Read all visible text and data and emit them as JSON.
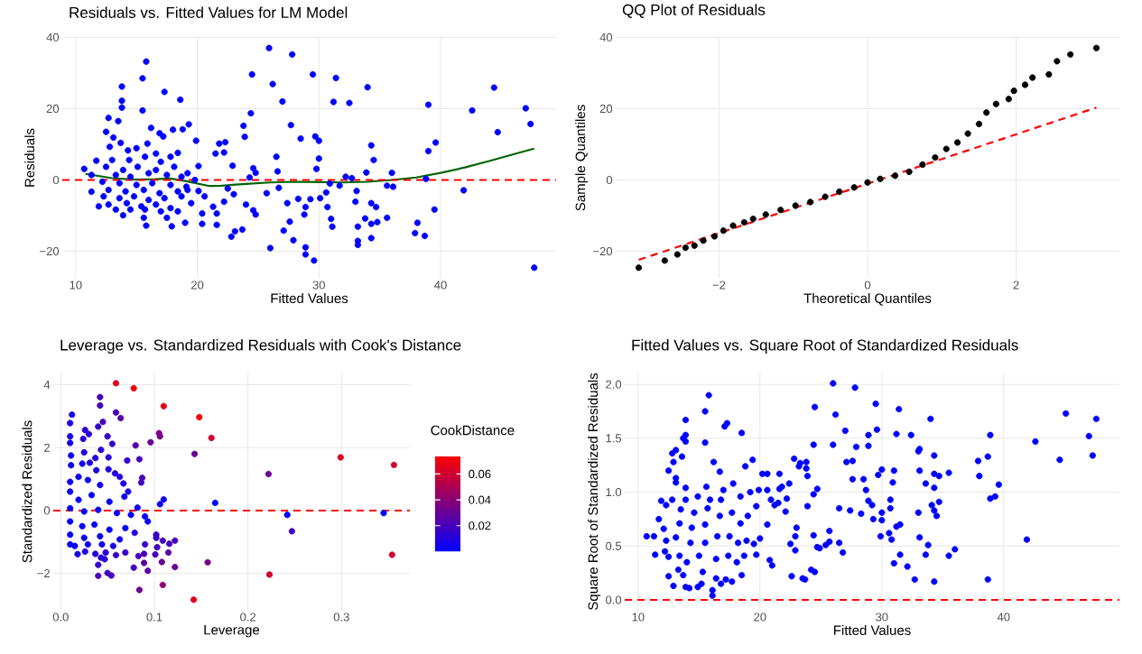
{
  "chart_data": [
    {
      "type": "scatter",
      "title": "Residuals vs. Fitted Values for LM Model",
      "xlabel": "Fitted Values",
      "ylabel": "Residuals",
      "xlim": [
        8.9,
        49.5
      ],
      "ylim": [
        -27.7,
        40.1
      ],
      "xticks": [
        10,
        20,
        30,
        40
      ],
      "yticks": [
        {
          "value": -20,
          "label": "−20"
        },
        0,
        20,
        40
      ],
      "grid": true,
      "marker": "circle",
      "series": [
        {
          "color": "#0000ff",
          "x": [
            25.9,
            27.8,
            15.8,
            24.5,
            29.5,
            31.4,
            15.5,
            26.2,
            34.0,
            44.4,
            13.8,
            17.3,
            27.0,
            31.2,
            32.5,
            39.0,
            42.6,
            47.0,
            15.5,
            18.6,
            13.8,
            24.4,
            13.8,
            12.7,
            13.5,
            47.4,
            27.7,
            23.8,
            19.3,
            44.7,
            12.5,
            29.7,
            23.9,
            28.5,
            30.0,
            19.9,
            39.6,
            34.3,
            21.8,
            22.3,
            39.0,
            21.5,
            22.2,
            26.5,
            30.0,
            34.5,
            22.9,
            20.1,
            24.6,
            29.8,
            26.6,
            33.9,
            36.0,
            24.8,
            32.2,
            32.7,
            38.8,
            24.3,
            10.7,
            11.7,
            11.3,
            11.3,
            11.9,
            41.9,
            33.1,
            25.7,
            35.6,
            36.1,
            31.7,
            30.9,
            30.6,
            26.7,
            23.0,
            22.5,
            20.6,
            20.1,
            27.4,
            28.3,
            29.3,
            30.1,
            33.0,
            34.3,
            39.5,
            34.7,
            30.7,
            28.9,
            24.6,
            24.8,
            24.0,
            22.2,
            21.3,
            20.4,
            21.6,
            28.8,
            33.8,
            35.6,
            34.8,
            31.0,
            27.6,
            38.1,
            34.3,
            31.1,
            33.2,
            20.4,
            21.6,
            19.0,
            23.1,
            23.7,
            22.8,
            27.1,
            37.9,
            38.7,
            34.3,
            33.2,
            33.2,
            27.9,
            26.0,
            28.9,
            28.9,
            29.6,
            47.7,
            17.9,
            15.8,
            13.9,
            15.6,
            17.5,
            12.8,
            13.1,
            16.9,
            18.0,
            18.8,
            16.2,
            17.2,
            13.7,
            15.9,
            18.4,
            15.0,
            14.3,
            16.6,
            17.8,
            13.0,
            14.4,
            15.7,
            17.0,
            12.5,
            13.9,
            15.1,
            16.6,
            18.1,
            13.3,
            14.5,
            16.0,
            17.5,
            18.7,
            12.2,
            13.6,
            15.0,
            16.3,
            17.8,
            19.1,
            12.7,
            14.1,
            15.6,
            16.9,
            18.4,
            12.3,
            13.6,
            14.8,
            16.0,
            17.3,
            18.7,
            12.7,
            14.2,
            15.4,
            16.6,
            17.8,
            13.3,
            14.5,
            15.7,
            17.0,
            18.4,
            19.5,
            19.2,
            19.8,
            19.2
          ],
          "values": [
            37.0,
            35.2,
            33.2,
            29.6,
            29.6,
            28.6,
            28.5,
            26.9,
            26.0,
            25.9,
            26.2,
            24.7,
            22.0,
            21.9,
            21.6,
            21.1,
            19.5,
            20.1,
            19.5,
            22.5,
            22.2,
            18.7,
            20.3,
            17.4,
            16.5,
            15.7,
            15.4,
            15.2,
            15.6,
            13.4,
            13.5,
            12.2,
            12.1,
            11.6,
            11.0,
            11.0,
            10.5,
            9.7,
            10.2,
            10.6,
            8.1,
            7.4,
            7.7,
            6.5,
            6.0,
            5.6,
            4.0,
            3.9,
            3.3,
            3.1,
            2.4,
            2.1,
            2.0,
            2.0,
            0.9,
            0.5,
            0.3,
            0.7,
            3.1,
            5.4,
            1.4,
            -3.3,
            -7.4,
            -2.9,
            -3.1,
            -3.7,
            -1.6,
            -1.9,
            -1.6,
            -1.0,
            -3.5,
            -2.2,
            -4.0,
            -2.4,
            -4.6,
            -3.1,
            -6.5,
            -5.3,
            -5.4,
            -5.1,
            -6.1,
            -6.5,
            -8.3,
            -7.6,
            -7.6,
            -7.6,
            -8.5,
            -9.7,
            -6.9,
            -6.1,
            -7.5,
            -9.4,
            -9.4,
            -9.7,
            -10.8,
            -10.6,
            -11.8,
            -10.9,
            -11.7,
            -12.0,
            -12.3,
            -13.1,
            -13.1,
            -12.3,
            -12.6,
            -12.0,
            -14.4,
            -13.9,
            -15.9,
            -14.2,
            -14.9,
            -15.7,
            -16.3,
            -17.1,
            -18.2,
            -16.9,
            -19.1,
            -18.9,
            -20.9,
            -22.6,
            -24.6,
            -13.0,
            -12.8,
            -9.9,
            -10.6,
            -10.6,
            9.3,
            11.9,
            13.1,
            14.1,
            14.2,
            14.6,
            12.2,
            10.4,
            10.2,
            7.6,
            8.9,
            8.3,
            7.4,
            6.5,
            5.6,
            5.6,
            6.5,
            5.1,
            3.7,
            2.8,
            3.7,
            2.8,
            3.7,
            1.4,
            0.9,
            1.9,
            1.4,
            0.9,
            -0.5,
            -0.9,
            -1.4,
            -0.9,
            -1.4,
            -1.9,
            -2.8,
            -3.2,
            -2.8,
            -3.7,
            -3.2,
            -4.6,
            -5.1,
            -4.6,
            -5.6,
            -5.1,
            -4.6,
            -6.9,
            -6.5,
            -7.4,
            -6.9,
            -7.9,
            -8.3,
            -8.3,
            -8.3,
            -8.8,
            -8.8,
            -6.5,
            -2.8,
            0.0,
            1.9
          ]
        },
        {
          "type": "line",
          "color": "#006400",
          "marker": "none",
          "x": [
            10.8,
            13,
            15,
            16.5,
            17.8,
            19,
            21,
            22,
            24,
            26,
            28,
            30,
            32,
            34,
            36,
            38,
            40,
            42,
            44,
            46,
            47.7
          ],
          "values": [
            1.7,
            0.5,
            0.1,
            0.2,
            0.4,
            -0.3,
            -1.7,
            -1.6,
            -1.1,
            -0.7,
            -0.5,
            -0.6,
            -0.7,
            -0.5,
            0.0,
            0.7,
            2.0,
            3.5,
            5.3,
            7.2,
            8.8
          ]
        }
      ],
      "ref_lines": [
        {
          "axis": "y",
          "value": 0,
          "color": "#ff0000",
          "line_style": "dashed"
        }
      ]
    },
    {
      "type": "scatter",
      "title": "QQ Plot of Residuals",
      "xlabel": "Theoretical Quantiles",
      "ylabel": "Sample Quantiles",
      "xlim": [
        -3.39,
        3.39
      ],
      "ylim": [
        -27.7,
        40.1
      ],
      "xticks": [
        {
          "value": -2,
          "label": "−2"
        },
        0,
        2
      ],
      "yticks": [
        {
          "value": -20,
          "label": "−20"
        },
        0,
        20,
        40
      ],
      "grid": true,
      "marker": "circle",
      "series": [
        {
          "color": "#000000",
          "x": [
            -3.08,
            -2.73,
            -2.56,
            -2.45,
            -2.33,
            -2.21,
            -2.06,
            -1.94,
            -1.81,
            -1.66,
            -1.54,
            -1.37,
            -1.17,
            -0.97,
            -0.77,
            -0.57,
            -0.38,
            -0.18,
            0,
            0.17,
            0.37,
            0.56,
            0.74,
            0.91,
            1.06,
            1.21,
            1.35,
            1.5,
            1.6,
            1.73,
            1.9,
            1.97,
            2.12,
            2.22,
            2.44,
            2.55,
            2.73,
            3.08
          ],
          "values": [
            -24.6,
            -22.6,
            -20.9,
            -19.0,
            -18.4,
            -17.0,
            -15.8,
            -14.2,
            -12.8,
            -11.9,
            -10.9,
            -9.7,
            -8.4,
            -7.2,
            -6.2,
            -4.7,
            -3.3,
            -2.1,
            -0.7,
            0.3,
            1.2,
            2.3,
            4.3,
            6.3,
            8.7,
            10.5,
            13.0,
            15.7,
            18.9,
            21.3,
            22.7,
            25.0,
            26.7,
            28.7,
            29.6,
            33.3,
            35.2,
            37.0
          ]
        },
        {
          "type": "line",
          "color": "#ff0000",
          "marker": "none",
          "line_style": "dashed",
          "x": [
            -3.08,
            3.08
          ],
          "values": [
            -22.4,
            20.3
          ]
        }
      ]
    },
    {
      "type": "scatter",
      "title": "Leverage vs. Standardized Residuals with Cook's Distance",
      "xlabel": "Leverage",
      "ylabel": "Standardized Residuals",
      "clabel": "CookDistance",
      "xlim": [
        -0.008,
        0.373
      ],
      "ylim": [
        -3.19,
        4.39
      ],
      "xticks": [
        {
          "value": 0,
          "label": "0.0"
        },
        {
          "value": 0.1,
          "label": "0.1"
        },
        {
          "value": 0.2,
          "label": "0.2"
        },
        {
          "value": 0.3,
          "label": "0.3"
        }
      ],
      "yticks": [
        {
          "value": -2,
          "label": "−2"
        },
        0,
        2,
        4
      ],
      "clim": [
        0,
        0.074
      ],
      "cticks": [
        0.02,
        0.04,
        0.06
      ],
      "grid": true,
      "marker": "circle",
      "x": [
        0.059,
        0.078,
        0.11,
        0.148,
        0.161,
        0.299,
        0.356,
        0.222,
        0.143,
        0.165,
        0.242,
        0.345,
        0.247,
        0.354,
        0.157,
        0.223,
        0.142,
        0.109,
        0.084,
        0.042,
        0.042,
        0.059,
        0.064,
        0.012,
        0.01,
        0.045,
        0.026,
        0.03,
        0.04,
        0.105,
        0.106,
        0.096,
        0.08,
        0.055,
        0.05,
        0.024,
        0.01,
        0.01,
        0.025,
        0.043,
        0.011,
        0.037,
        0.051,
        0.071,
        0.084,
        0.011,
        0.023,
        0.031,
        0.038,
        0.051,
        0.058,
        0.063,
        0.087,
        0.086,
        0.01,
        0.019,
        0.029,
        0.042,
        0.067,
        0.072,
        0.068,
        0.106,
        0.11,
        0.082,
        0.01,
        0.019,
        0.033,
        0.052,
        0.01,
        0.025,
        0.04,
        0.06,
        0.075,
        0.09,
        0.093,
        0.01,
        0.023,
        0.036,
        0.052,
        0.069,
        0.01,
        0.025,
        0.042,
        0.063,
        0.079,
        0.01,
        0.015,
        0.029,
        0.044,
        0.056,
        0.09,
        0.102,
        0.102,
        0.109,
        0.122,
        0.116,
        0.103,
        0.115,
        0.101,
        0.089,
        0.083,
        0.069,
        0.059,
        0.048,
        0.037,
        0.026,
        0.018,
        0.043,
        0.047,
        0.04,
        0.078,
        0.089,
        0.108,
        0.122,
        0.093,
        0.04,
        0.05,
        0.054
      ],
      "values": [
        4.05,
        3.89,
        3.32,
        2.97,
        2.31,
        1.69,
        1.45,
        1.16,
        1.8,
        0.24,
        -0.14,
        -0.08,
        -0.66,
        -1.41,
        -1.65,
        -2.04,
        -2.84,
        -2.37,
        -2.53,
        3.61,
        3.34,
        3.12,
        2.94,
        3.05,
        2.78,
        2.82,
        2.56,
        2.43,
        2.67,
        2.46,
        2.36,
        2.17,
        2.07,
        2.12,
        2.36,
        2.28,
        2.36,
        2.15,
        1.85,
        1.93,
        1.75,
        1.67,
        1.69,
        1.59,
        1.63,
        1.44,
        1.49,
        1.52,
        1.28,
        1.31,
        1.18,
        1.07,
        1.04,
        0.89,
        0.91,
        1.07,
        0.97,
        0.81,
        0.86,
        0.6,
        0.44,
        0.2,
        0.35,
        0.09,
        0.6,
        0.34,
        0.49,
        0.28,
        0.07,
        -0.03,
        0.02,
        -0.08,
        -0.14,
        -0.19,
        -0.35,
        -0.35,
        -0.5,
        -0.45,
        -0.61,
        -0.56,
        -0.77,
        -0.87,
        -0.82,
        -0.92,
        -0.71,
        -1.08,
        -1.13,
        -1.08,
        -1.08,
        -1.13,
        -1.08,
        -0.77,
        -0.87,
        -0.96,
        -0.96,
        -1.06,
        -1.17,
        -1.34,
        -1.4,
        -1.38,
        -1.45,
        -1.34,
        -1.42,
        -1.34,
        -1.38,
        -1.31,
        -1.39,
        -1.5,
        -1.55,
        -1.73,
        -1.82,
        -1.67,
        -1.64,
        -1.8,
        -1.92,
        -2.08,
        -1.99,
        -2.07
      ],
      "cvalues": [
        0.065,
        0.068,
        0.065,
        0.072,
        0.06,
        0.065,
        0.06,
        0.03,
        0.03,
        0.0,
        0.0,
        0.0,
        0.02,
        0.06,
        0.035,
        0.06,
        0.065,
        0.04,
        0.03,
        0.02,
        0.02,
        0.02,
        0.025,
        0.008,
        0.008,
        0.02,
        0.012,
        0.012,
        0.015,
        0.035,
        0.035,
        0.03,
        0.025,
        0.015,
        0.015,
        0.012,
        0.005,
        0.005,
        0.01,
        0.012,
        0.005,
        0.01,
        0.012,
        0.015,
        0.02,
        0.005,
        0.005,
        0.008,
        0.008,
        0.008,
        0.01,
        0.01,
        0.02,
        0.02,
        0.003,
        0.003,
        0.003,
        0.005,
        0.008,
        0.008,
        0.005,
        0.003,
        0.003,
        0.003,
        0.002,
        0.001,
        0.002,
        0.002,
        0.001,
        0.001,
        0.001,
        0.001,
        0.002,
        0.003,
        0.003,
        0.001,
        0.002,
        0.002,
        0.003,
        0.003,
        0.002,
        0.003,
        0.004,
        0.006,
        0.008,
        0.003,
        0.003,
        0.005,
        0.006,
        0.008,
        0.015,
        0.015,
        0.015,
        0.02,
        0.02,
        0.02,
        0.02,
        0.025,
        0.02,
        0.02,
        0.02,
        0.015,
        0.015,
        0.012,
        0.01,
        0.008,
        0.008,
        0.012,
        0.012,
        0.015,
        0.02,
        0.025,
        0.03,
        0.03,
        0.025,
        0.02,
        0.02,
        0.02
      ],
      "ref_lines": [
        {
          "axis": "y",
          "value": 0,
          "color": "#ff0000",
          "line_style": "dashed"
        }
      ]
    },
    {
      "type": "scatter",
      "title": "Fitted Values vs. Square Root of Standardized Residuals",
      "xlabel": "Fitted Values",
      "ylabel": "Square Root of Standardized Residuals",
      "xlim": [
        8.9,
        49.5
      ],
      "ylim": [
        -0.1,
        2.11
      ],
      "xticks": [
        10,
        20,
        30,
        40
      ],
      "yticks": [
        {
          "value": 0,
          "label": "0.0"
        },
        {
          "value": 0.5,
          "label": "0.5"
        },
        {
          "value": 1,
          "label": "1.0"
        },
        {
          "value": 1.5,
          "label": "1.5"
        },
        {
          "value": 2,
          "label": "2.0"
        }
      ],
      "grid": true,
      "marker": "circle",
      "color": "#0000ff",
      "x": [
        26.0,
        27.8,
        15.8,
        29.5,
        24.5,
        31.4,
        15.5,
        45.1,
        26.2,
        34.0,
        47.6,
        13.9,
        17.3,
        17.1,
        29.6,
        27.0,
        18.5,
        13.9,
        38.9,
        28.9,
        31.2,
        32.4,
        47.0,
        13.7,
        13.9,
        42.6,
        15.5,
        24.4,
        26.0,
        28.9,
        27.9,
        33.1,
        33.0,
        13.1,
        12.8,
        13.6,
        34.3,
        38.7,
        47.3,
        22.8,
        19.4,
        44.6,
        12.9,
        16.2,
        23.8,
        23.3,
        27.1,
        27.6,
        37.9,
        23.2,
        23.8,
        12.5,
        16.7,
        30.0,
        31.0,
        33.1,
        18.8,
        20.2,
        20.6,
        21.6,
        35.5,
        34.3,
        34.7,
        23.9,
        29.7,
        38.0,
        13.1,
        13.1,
        27.6,
        28.5,
        30.9,
        33.6,
        39.6,
        22.4,
        21.8,
        21.6,
        24.7,
        28.7,
        34.3,
        13.9,
        19.9,
        20.6,
        24.4,
        39.3,
        38.9,
        30.7,
        34.7,
        28.9,
        20.9,
        22.2,
        21.5,
        21.2,
        29.2,
        34.1,
        23.9,
        19.7,
        26.5,
        27.4,
        34.3,
        22.1,
        28.3,
        33.0,
        34.5,
        30.7,
        30.0,
        30.0,
        29.3,
        20.6,
        31.5,
        31.2,
        25.7,
        23.0,
        22.9,
        24.4,
        30.6,
        29.9,
        33.1,
        41.9,
        30.8,
        25.7,
        26.5,
        25.4,
        33.8,
        22.5,
        24.7,
        24.9,
        36.0,
        22.9,
        26.8,
        31.5,
        33.6,
        35.5,
        20.8,
        21.0,
        31.0,
        32.1,
        24.2,
        24.5,
        22.6,
        23.5,
        23.7,
        32.7,
        34.3,
        38.7,
        10.7,
        11.3,
        11.4,
        11.7,
        11.9,
        12.3,
        12.8,
        12.1,
        12.3,
        12.2,
        12.5,
        12.5,
        12.9,
        13.3,
        13.1,
        13.4,
        13.5,
        13.9,
        13.4,
        13.7,
        13.9,
        14.2,
        14.0,
        14.3,
        14.4,
        14.6,
        14.9,
        14.9,
        15.2,
        15.0,
        15.3,
        15.5,
        15.5,
        15.7,
        15.9,
        15.6,
        16.1,
        16.1,
        16.4,
        16.4,
        16.5,
        16.7,
        16.8,
        17.0,
        16.8,
        17.2,
        17.4,
        17.5,
        17.7,
        17.8,
        17.7,
        18.1,
        18.2,
        18.4,
        18.4,
        18.5,
        18.7,
        18.9,
        19.0,
        19.2,
        19.7,
        19.5,
        20.0
      ],
      "values": [
        2.01,
        1.97,
        1.9,
        1.82,
        1.79,
        1.77,
        1.75,
        1.73,
        1.72,
        1.68,
        1.68,
        1.67,
        1.64,
        1.61,
        1.58,
        1.57,
        1.55,
        1.53,
        1.53,
        1.53,
        1.54,
        1.53,
        1.52,
        1.5,
        1.47,
        1.47,
        1.46,
        1.44,
        1.44,
        1.43,
        1.42,
        1.4,
        1.38,
        1.39,
        1.36,
        1.33,
        1.34,
        1.33,
        1.34,
        1.31,
        1.3,
        1.3,
        1.28,
        1.28,
        1.28,
        1.27,
        1.28,
        1.29,
        1.29,
        1.24,
        1.22,
        1.2,
        1.19,
        1.21,
        1.2,
        1.2,
        1.24,
        1.17,
        1.17,
        1.17,
        1.18,
        1.17,
        1.15,
        1.15,
        1.16,
        1.15,
        1.13,
        1.09,
        1.12,
        1.12,
        1.09,
        1.08,
        1.07,
        1.08,
        1.05,
        1.03,
        1.03,
        1.02,
        1.04,
        1.04,
        1.02,
        1.02,
        0.98,
        0.96,
        0.94,
        0.93,
        0.91,
        0.92,
        0.93,
        0.94,
        0.9,
        0.88,
        0.88,
        0.88,
        0.87,
        0.87,
        0.85,
        0.83,
        0.83,
        0.82,
        0.8,
        0.81,
        0.78,
        0.85,
        0.81,
        0.74,
        0.75,
        0.7,
        0.7,
        0.68,
        0.64,
        0.67,
        0.59,
        0.6,
        0.62,
        0.59,
        0.58,
        0.56,
        0.56,
        0.54,
        0.53,
        0.51,
        0.51,
        0.52,
        0.49,
        0.48,
        0.47,
        0.46,
        0.44,
        0.42,
        0.42,
        0.41,
        0.37,
        0.32,
        0.34,
        0.31,
        0.28,
        0.26,
        0.22,
        0.2,
        0.19,
        0.19,
        0.17,
        0.19,
        0.59,
        0.59,
        0.42,
        0.75,
        0.92,
        0.88,
        0.93,
        0.66,
        0.55,
        0.45,
        0.4,
        0.22,
        0.13,
        0.28,
        0.58,
        0.71,
        0.84,
        0.93,
        0.41,
        0.23,
        0.12,
        0.11,
        0.35,
        0.53,
        0.67,
        0.81,
        0.96,
        0.12,
        0.15,
        0.41,
        0.26,
        0.53,
        0.7,
        0.85,
        0.93,
        1.05,
        0.04,
        0.09,
        0.2,
        0.38,
        0.59,
        0.78,
        0.93,
        1.02,
        0.15,
        0.19,
        0.41,
        0.59,
        0.81,
        1.08,
        0.17,
        0.35,
        0.53,
        0.71,
        0.96,
        0.23,
        0.41,
        0.55,
        0.78,
        1.0,
        0.42,
        0.52,
        0.57
      ],
      "ref_lines": [
        {
          "axis": "y",
          "value": 0,
          "color": "#ff0000",
          "line_style": "dashed"
        }
      ]
    }
  ]
}
